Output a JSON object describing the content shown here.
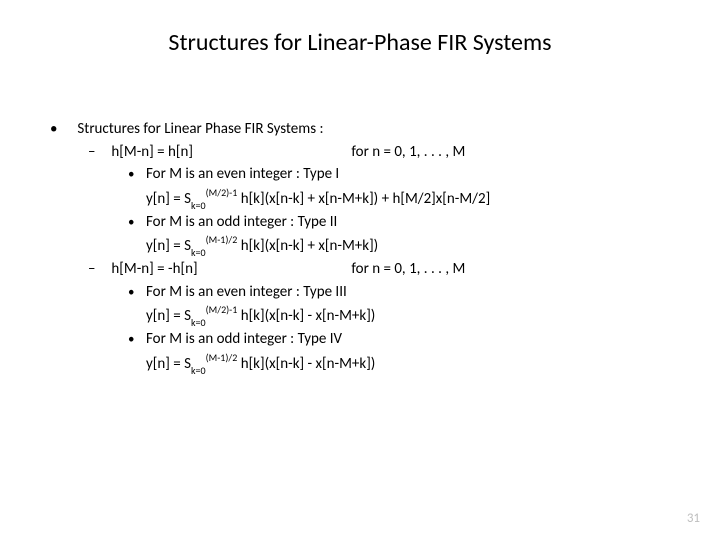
{
  "colors": {
    "background": "#ffffff",
    "text": "#000000",
    "pagenum": "#bfbfbf"
  },
  "typography": {
    "title_fontsize": 24,
    "body_fontsize": 15,
    "pagenum_fontsize": 13,
    "font_family": "Calibri"
  },
  "title": "Structures for Linear-Phase FIR Systems",
  "heading": "Structures for Linear Phase FIR Systems :",
  "case1": {
    "cond": "h[M-n] = h[n]",
    "range": "for n =  0, 1, . . . , M",
    "even_label": "For M is an even integer : Type I",
    "even_eq_pre": "y[n] = S",
    "even_eq_sub": "k=0",
    "even_eq_sup": "(M/2)-1",
    "even_eq_post": " h[k](x[n-k] + x[n-M+k]) + h[M/2]x[n-M/2]",
    "odd_label": "For M is an odd integer  : Type II",
    "odd_eq_pre": "y[n] = S",
    "odd_eq_sub": "k=0",
    "odd_eq_sup": "(M-1)/2",
    "odd_eq_post": " h[k](x[n-k] + x[n-M+k])"
  },
  "case2": {
    "cond": "h[M-n] = -h[n]",
    "range": "for n =  0, 1, . . . , M",
    "even_label": "For M is an even integer : Type III",
    "even_eq_pre": "y[n] = S",
    "even_eq_sub": "k=0",
    "even_eq_sup": "(M/2)-1",
    "even_eq_post": " h[k](x[n-k] - x[n-M+k])",
    "odd_label": "For M is an odd integer  : Type IV",
    "odd_eq_pre": "y[n] = S",
    "odd_eq_sub": "k=0",
    "odd_eq_sup": "(M-1)/2",
    "odd_eq_post": " h[k](x[n-k] - x[n-M+k])"
  },
  "pagenum": "31"
}
